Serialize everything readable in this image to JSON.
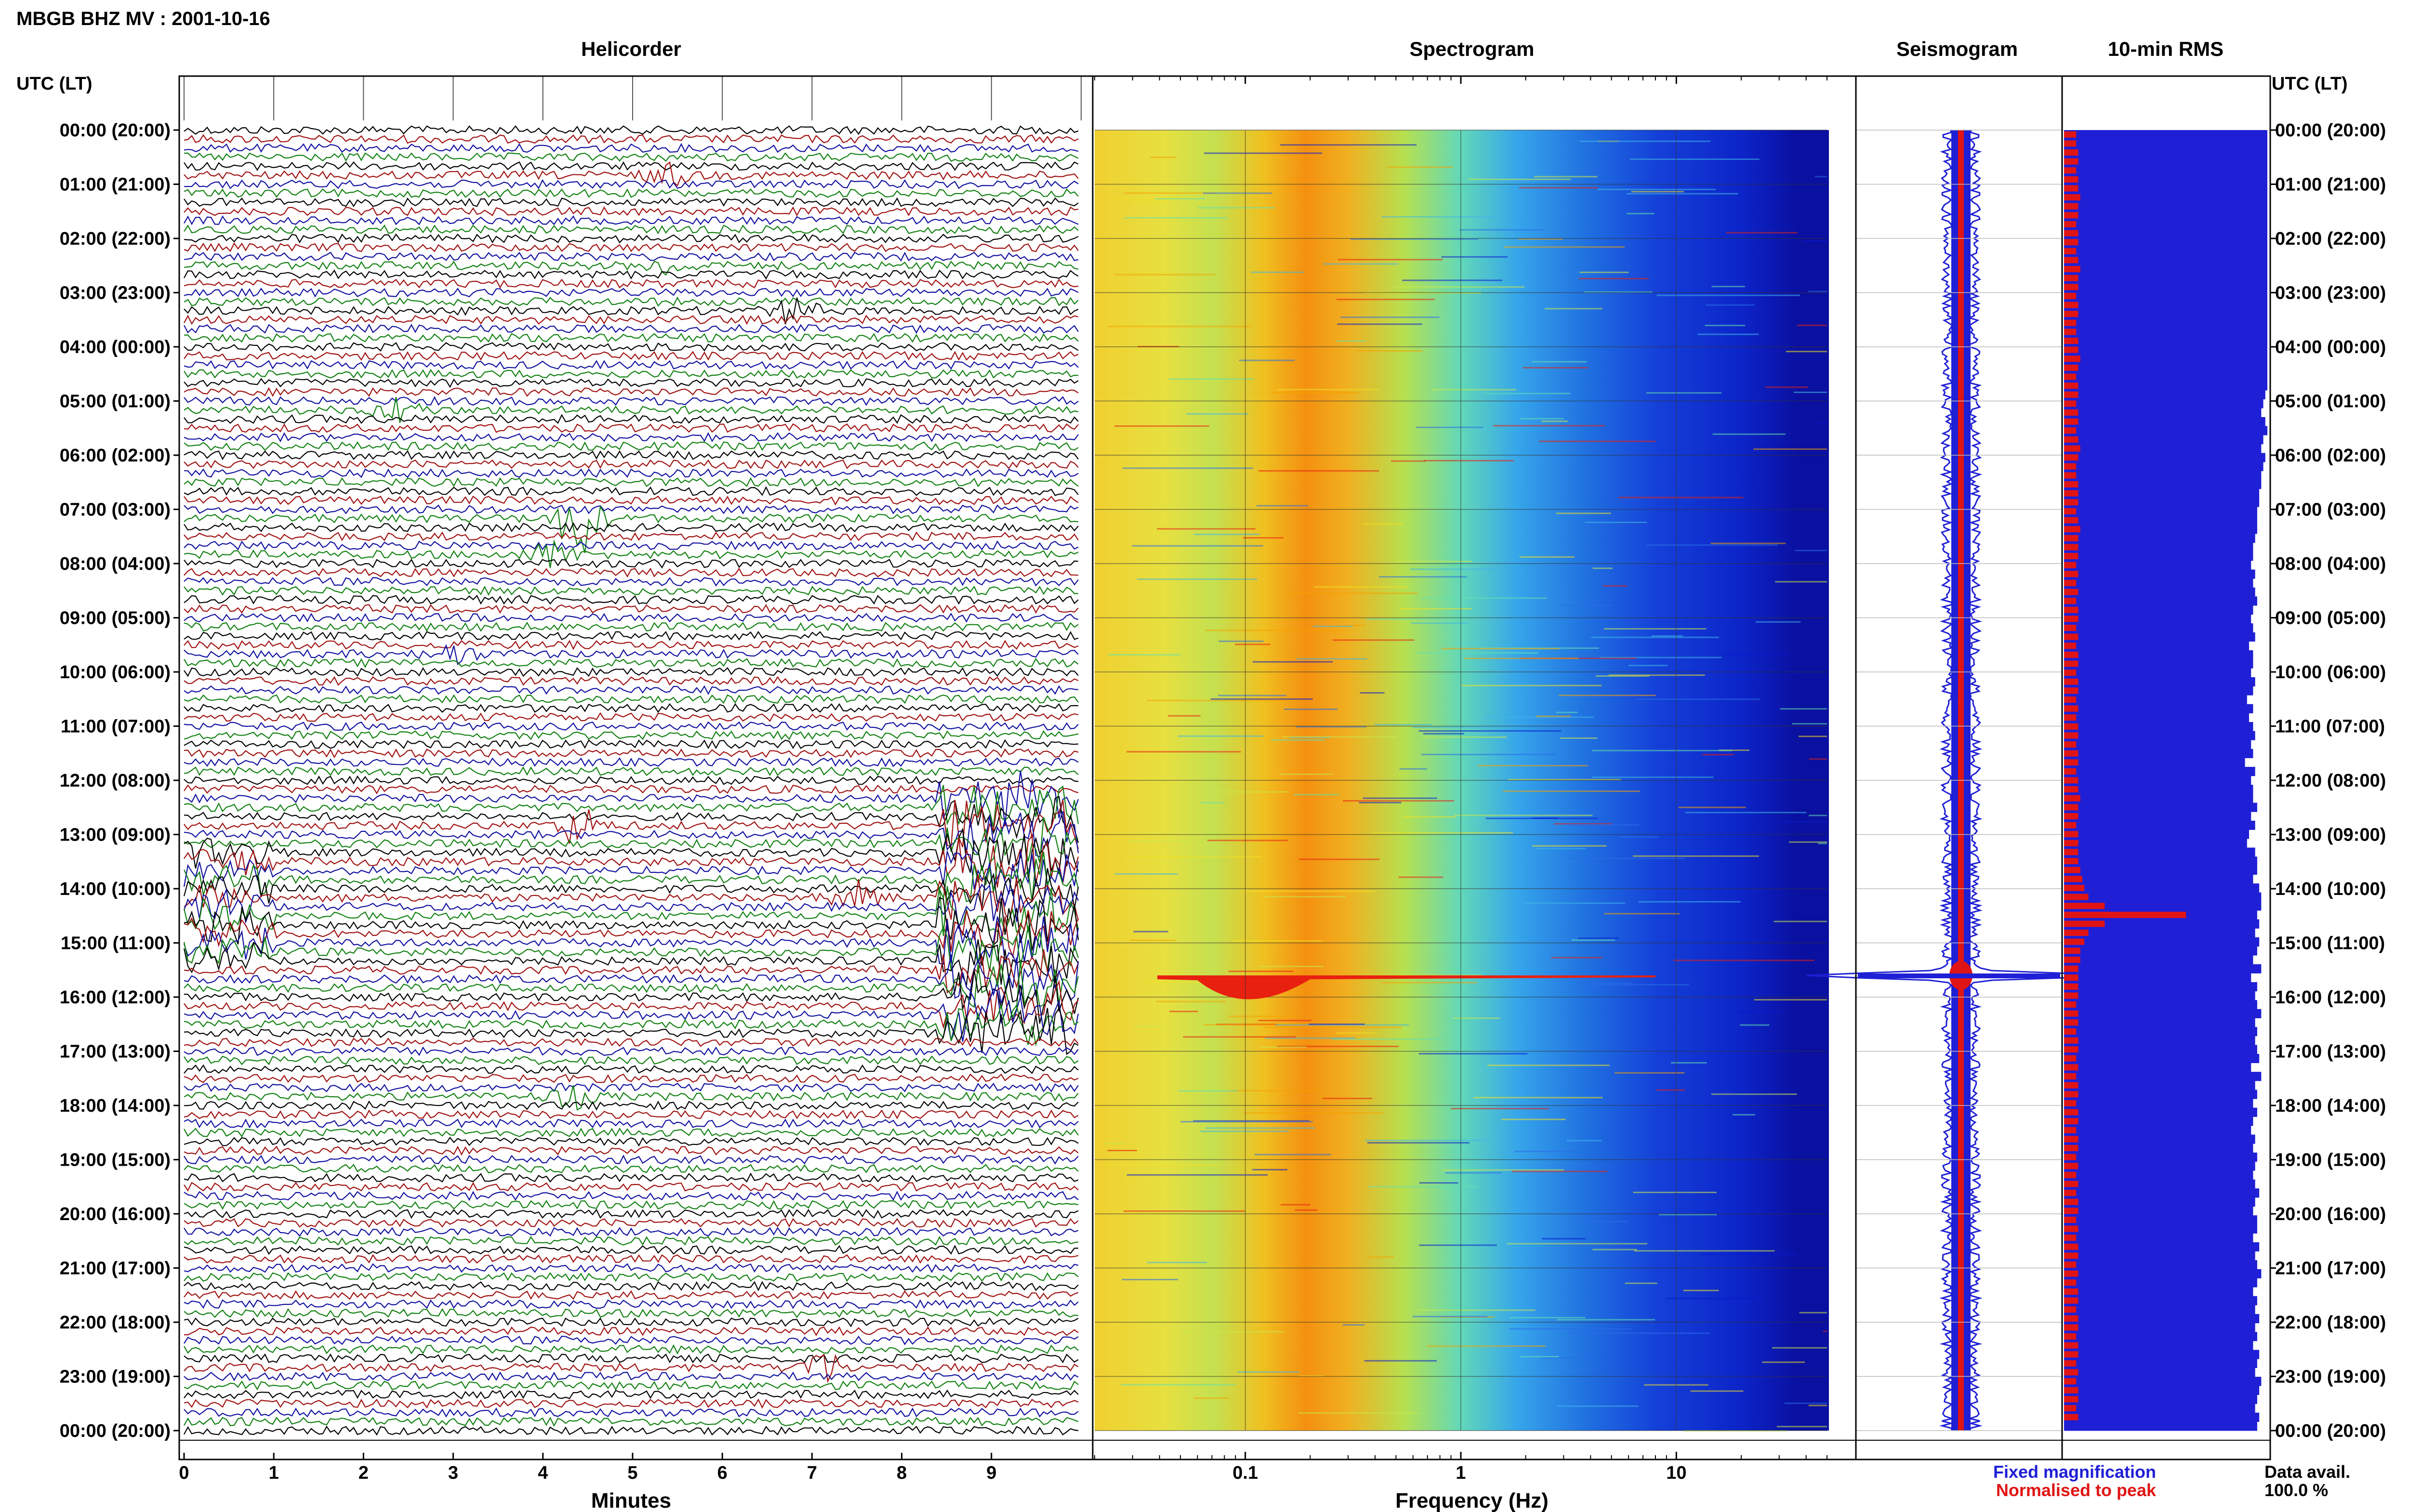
{
  "header": {
    "title": "MBGB BHZ MV : 2001-10-16",
    "tz_label": "UTC (LT)"
  },
  "panels": {
    "helicorder": {
      "title": "Helicorder",
      "xlabel": "Minutes",
      "ticks": [
        "0",
        "1",
        "2",
        "3",
        "4",
        "5",
        "6",
        "7",
        "8",
        "9"
      ]
    },
    "spectrogram": {
      "title": "Spectrogram",
      "xlabel": "Frequency (Hz)",
      "ticks": [
        "0.1",
        "1",
        "10"
      ]
    },
    "seismogram": {
      "title": "Seismogram"
    },
    "rms": {
      "title": "10-min RMS"
    }
  },
  "time_labels": [
    "00:00 (20:00)",
    "01:00 (21:00)",
    "02:00 (22:00)",
    "03:00 (23:00)",
    "04:00 (00:00)",
    "05:00 (01:00)",
    "06:00 (02:00)",
    "07:00 (03:00)",
    "08:00 (04:00)",
    "09:00 (05:00)",
    "10:00 (06:00)",
    "11:00 (07:00)",
    "12:00 (08:00)",
    "13:00 (09:00)",
    "14:00 (10:00)",
    "15:00 (11:00)",
    "16:00 (12:00)",
    "17:00 (13:00)",
    "18:00 (14:00)",
    "19:00 (15:00)",
    "20:00 (16:00)",
    "21:00 (17:00)",
    "22:00 (18:00)",
    "23:00 (19:00)",
    "00:00 (20:00)"
  ],
  "legend": {
    "fixed": "Fixed magnification",
    "normalised": "Normalised to peak",
    "fixed_color": "#1f1fd6",
    "normalised_color": "#e01414"
  },
  "availability": {
    "label": "Data avail.",
    "value": "100.0 %"
  },
  "chart_data": [
    {
      "type": "line",
      "title": "Helicorder",
      "xlabel": "Minutes",
      "ylabel": "UTC (LT)",
      "xlim": [
        0,
        10
      ],
      "rows_per_hour": 6,
      "trace_colors": [
        "#000000",
        "#a01010",
        "#1010a0",
        "#108010"
      ],
      "events": [
        {
          "row": 5,
          "minute": 5.4,
          "amp": 0.8
        },
        {
          "row": 15,
          "minute": 5.4,
          "amp": 0.7
        },
        {
          "row": 20,
          "minute": 6.8,
          "amp": 1.0
        },
        {
          "row": 31,
          "minute": 2.4,
          "amp": 1.0
        },
        {
          "row": 43,
          "minute": 4.4,
          "amp": 3.0
        },
        {
          "row": 47,
          "minute": 4.1,
          "amp": 1.0
        },
        {
          "row": 58,
          "minute": 3.0,
          "amp": 0.8
        },
        {
          "row": 77,
          "minute": 4.4,
          "amp": 1.5
        },
        {
          "row": 85,
          "minute": 7.5,
          "amp": 1.2
        },
        {
          "row": 107,
          "minute": 4.3,
          "amp": 0.9
        },
        {
          "row": 137,
          "minute": 7.1,
          "amp": 1.3
        }
      ],
      "bursts": [
        {
          "row_start": 74,
          "row_end": 100,
          "minute_start": 8.4,
          "minute_end": 10.0,
          "amp": 5.0
        },
        {
          "row_start": 80,
          "row_end": 92,
          "minute_start": 0.0,
          "minute_end": 1.0,
          "amp": 3.0
        }
      ]
    },
    {
      "type": "heatmap",
      "title": "Spectrogram",
      "xlabel": "Frequency (Hz)",
      "ylabel": "UTC (LT)",
      "x_scale": "log",
      "xlim": [
        0.02,
        50
      ],
      "xticks": [
        0.1,
        1,
        10
      ],
      "colormap": [
        "#0a1ad0",
        "#2a6ee8",
        "#3fb6e8",
        "#63e0b0",
        "#c8e84a",
        "#f0e020",
        "#f6a000",
        "#e82010"
      ],
      "peak_band_hz": [
        0.2,
        0.5
      ],
      "event_line_hour": 15.6
    },
    {
      "type": "line",
      "title": "Seismogram",
      "series": [
        {
          "name": "Fixed magnification",
          "color": "#1f1fd6"
        },
        {
          "name": "Normalised to peak",
          "color": "#e01414"
        }
      ],
      "peak_hour": 15.6
    },
    {
      "type": "bar",
      "title": "10-min RMS",
      "orientation": "horizontal",
      "series": [
        {
          "name": "Fixed magnification",
          "color": "#1f1fd6",
          "values": [
            1.0,
            1.0,
            1.0,
            1.0,
            1.0,
            1.0,
            1.0,
            1.0,
            1.0,
            1.0,
            1.0,
            1.0,
            1.0,
            1.0,
            1.0,
            1.0,
            1.0,
            1.0,
            1.0,
            1.0,
            1.0,
            1.0,
            1.0,
            1.0,
            1.0,
            1.0,
            1.0,
            1.0,
            1.0,
            0.99,
            0.98,
            0.97,
            0.99,
            1.0,
            0.98,
            0.97,
            0.99,
            0.98,
            0.97,
            0.97,
            0.96,
            0.96,
            0.95,
            0.95,
            0.95,
            0.94,
            0.93,
            0.93,
            0.92,
            0.94,
            0.93,
            0.94,
            0.95,
            0.93,
            0.92,
            0.93,
            0.94,
            0.91,
            0.93,
            0.93,
            0.92,
            0.94,
            0.93,
            0.9,
            0.93,
            0.91,
            0.93,
            0.94,
            0.92,
            0.93,
            0.89,
            0.94,
            0.92,
            0.93,
            0.93,
            0.95,
            0.92,
            0.94,
            0.91,
            0.9,
            0.94,
            0.95,
            0.95,
            0.93,
            0.96,
            0.97,
            0.97,
            0.95,
            0.96,
            0.94,
            0.96,
            0.95,
            0.93,
            0.97,
            0.92,
            0.95,
            0.94,
            0.95,
            0.97,
            0.94,
            0.95,
            0.94,
            0.95,
            0.96,
            0.92,
            0.97,
            0.94,
            0.95,
            0.93,
            0.95,
            0.93,
            0.92,
            0.94,
            0.93,
            0.95,
            0.94,
            0.93,
            0.94,
            0.96,
            0.94,
            0.93,
            0.95,
            0.95,
            0.93,
            0.96,
            0.94,
            0.95,
            0.97,
            0.95,
            0.93,
            0.95,
            0.94,
            0.96,
            0.94,
            0.95,
            0.93,
            0.96,
            0.95,
            0.94,
            0.97,
            0.96,
            0.95,
            0.94,
            0.96,
            0.95
          ]
        },
        {
          "name": "Normalised to peak",
          "color": "#e01414",
          "values": [
            0.06,
            0.06,
            0.07,
            0.07,
            0.06,
            0.07,
            0.07,
            0.08,
            0.07,
            0.07,
            0.06,
            0.07,
            0.07,
            0.06,
            0.07,
            0.08,
            0.07,
            0.07,
            0.06,
            0.07,
            0.07,
            0.06,
            0.06,
            0.07,
            0.07,
            0.08,
            0.07,
            0.06,
            0.07,
            0.07,
            0.06,
            0.07,
            0.07,
            0.06,
            0.07,
            0.08,
            0.07,
            0.06,
            0.06,
            0.07,
            0.07,
            0.07,
            0.06,
            0.07,
            0.08,
            0.07,
            0.07,
            0.07,
            0.06,
            0.07,
            0.06,
            0.07,
            0.06,
            0.07,
            0.07,
            0.06,
            0.07,
            0.06,
            0.07,
            0.07,
            0.06,
            0.07,
            0.07,
            0.06,
            0.07,
            0.06,
            0.07,
            0.07,
            0.06,
            0.07,
            0.07,
            0.06,
            0.07,
            0.07,
            0.08,
            0.07,
            0.07,
            0.06,
            0.07,
            0.07,
            0.07,
            0.07,
            0.08,
            0.09,
            0.1,
            0.12,
            0.2,
            0.6,
            0.2,
            0.12,
            0.1,
            0.08,
            0.08,
            0.07,
            0.07,
            0.07,
            0.07,
            0.06,
            0.07,
            0.07,
            0.06,
            0.07,
            0.07,
            0.06,
            0.07,
            0.06,
            0.07,
            0.07,
            0.06,
            0.07,
            0.07,
            0.06,
            0.07,
            0.07,
            0.06,
            0.07,
            0.06,
            0.07,
            0.06,
            0.07,
            0.07,
            0.06,
            0.07,
            0.06,
            0.07,
            0.07,
            0.06,
            0.07,
            0.06,
            0.07,
            0.07,
            0.06,
            0.07,
            0.07,
            0.06,
            0.07,
            0.07,
            0.06,
            0.07,
            0.06,
            0.07,
            0.07,
            0.06,
            0.07
          ]
        }
      ]
    }
  ]
}
